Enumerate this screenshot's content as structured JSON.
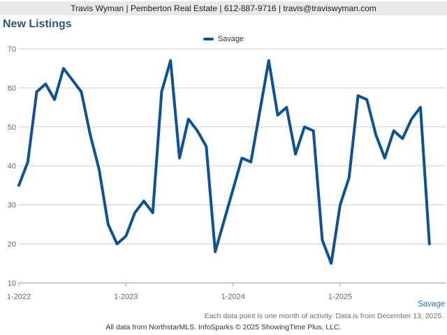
{
  "header": {
    "contact_bar": "Travis Wyman | Pemberton Real Estate | 612-887-9716 | travis@traviswyman.com"
  },
  "title": "New Listings",
  "colors": {
    "line_blue": "#0e5293",
    "title_blue": "#2b5876",
    "link_blue": "#2e74b5",
    "gridline_gray": "#cfcfcf",
    "axis_gray": "#9a9a9a",
    "tick_label_gray": "#666666",
    "header_bar_gray": "#e9e9e9"
  },
  "chart_data": {
    "type": "line",
    "title": "New Listings",
    "legend_position": "top-center",
    "grid": "horizontal",
    "ylim": [
      10,
      70
    ],
    "ytick_step": 10,
    "x_tick_labels": [
      "1-2022",
      "1-2023",
      "1-2024",
      "1-2025"
    ],
    "x_tick_month_indices": [
      0,
      12,
      24,
      36
    ],
    "x_start_month": "1-2022",
    "x_end_month": "11-2025",
    "series": [
      {
        "name": "Savage",
        "color": "#0e5293",
        "values": [
          35,
          41,
          59,
          61,
          57,
          65,
          62,
          59,
          48,
          39,
          25,
          20,
          22,
          28,
          31,
          28,
          59,
          67,
          42,
          52,
          49,
          45,
          18,
          26,
          34,
          42,
          41,
          54,
          67,
          53,
          55,
          43,
          50,
          49,
          21,
          15,
          30,
          37,
          58,
          57,
          48,
          42,
          49,
          47,
          52,
          55,
          20
        ]
      }
    ]
  },
  "footer": {
    "footnote": "Each data point is one month of activity. Data is from December 13, 2025.",
    "credit": "All data from NorthstarMLS. InfoSparks © 2025 ShowingTime Plus, LLC."
  }
}
